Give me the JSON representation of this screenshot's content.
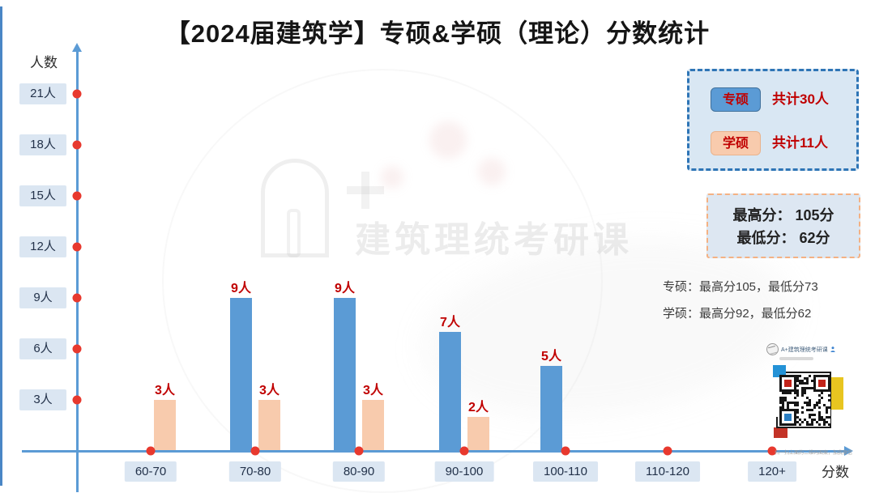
{
  "chart_data": {
    "type": "bar",
    "title": "【2024届建筑学】专硕&学硕（理论）分数统计",
    "categories": [
      "60-70",
      "70-80",
      "80-90",
      "90-100",
      "100-110",
      "110-120",
      "120+"
    ],
    "series": [
      {
        "key": "pro-master",
        "name": "专硕",
        "color": "#5b9bd5",
        "values": [
          0,
          9,
          9,
          7,
          5,
          0,
          0
        ],
        "total": "共计30人"
      },
      {
        "key": "academic-master",
        "name": "学硕",
        "color": "#f8cbad",
        "values": [
          3,
          3,
          3,
          2,
          0,
          0,
          0
        ],
        "total": "共计11人"
      }
    ],
    "xlabel": "分数",
    "ylabel": "人数",
    "yticks": [
      3,
      6,
      9,
      12,
      15,
      18,
      21
    ],
    "tick_suffix": "人",
    "value_suffix": "人",
    "ylim": [
      0,
      22
    ],
    "grid": false,
    "legend_position": "top-right"
  },
  "legend": {
    "rows": [
      {
        "label": "专硕",
        "total": "共计30人"
      },
      {
        "label": "学硕",
        "total": "共计11人"
      }
    ]
  },
  "stats_box": {
    "line1": "最高分： 105分",
    "line2": "最低分： 62分"
  },
  "notes": {
    "line1": "专硕：最高分105，最低分73",
    "line2": "学硕：最高分92，最低分62"
  },
  "watermark": {
    "text": "建筑理统考研课"
  },
  "qr": {
    "header": "A+建筑理统考研课",
    "caption": "扫一扫上面的二维码图案，加我微信"
  },
  "colors": {
    "axis": "#5b9bd5",
    "tick_dot": "#e8392e",
    "value_label": "#c00000",
    "tick_box_bg": "#dbe6f2",
    "legend_bg": "#d9e7f3",
    "legend_border": "#2e75b6",
    "stats_bg": "#dde7f2",
    "stats_border": "#f4b183",
    "bar_blue": "#5b9bd5",
    "bar_peach": "#f8cbad"
  }
}
